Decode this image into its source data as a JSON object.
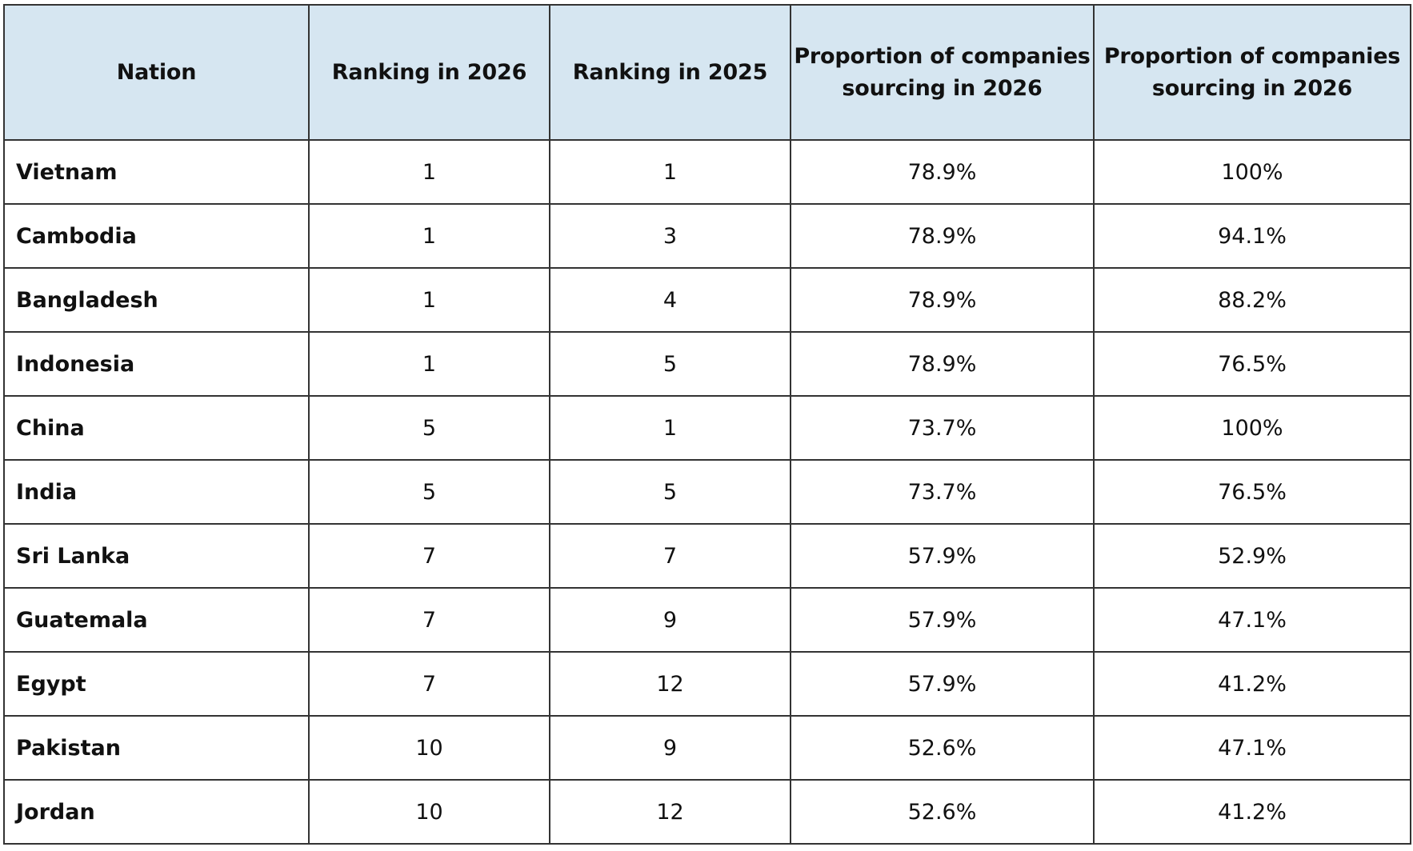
{
  "table": {
    "headers": [
      "Nation",
      "Ranking in 2026",
      "Ranking in 2025",
      "Proportion of companies sourcing in 2026",
      "Proportion of companies sourcing in 2026"
    ],
    "rows": [
      {
        "nation": "Vietnam",
        "rank_2026": "1",
        "rank_2025": "1",
        "prop_a": "78.9%",
        "prop_b": "100%"
      },
      {
        "nation": "Cambodia",
        "rank_2026": "1",
        "rank_2025": "3",
        "prop_a": "78.9%",
        "prop_b": "94.1%"
      },
      {
        "nation": "Bangladesh",
        "rank_2026": "1",
        "rank_2025": "4",
        "prop_a": "78.9%",
        "prop_b": "88.2%"
      },
      {
        "nation": "Indonesia",
        "rank_2026": "1",
        "rank_2025": "5",
        "prop_a": "78.9%",
        "prop_b": "76.5%"
      },
      {
        "nation": "China",
        "rank_2026": "5",
        "rank_2025": "1",
        "prop_a": "73.7%",
        "prop_b": "100%"
      },
      {
        "nation": "India",
        "rank_2026": "5",
        "rank_2025": "5",
        "prop_a": "73.7%",
        "prop_b": "76.5%"
      },
      {
        "nation": "Sri Lanka",
        "rank_2026": "7",
        "rank_2025": "7",
        "prop_a": "57.9%",
        "prop_b": "52.9%"
      },
      {
        "nation": "Guatemala",
        "rank_2026": "7",
        "rank_2025": "9",
        "prop_a": "57.9%",
        "prop_b": "47.1%"
      },
      {
        "nation": "Egypt",
        "rank_2026": "7",
        "rank_2025": "12",
        "prop_a": "57.9%",
        "prop_b": "41.2%"
      },
      {
        "nation": "Pakistan",
        "rank_2026": "10",
        "rank_2025": "9",
        "prop_a": "52.6%",
        "prop_b": "47.1%"
      },
      {
        "nation": "Jordan",
        "rank_2026": "10",
        "rank_2025": "12",
        "prop_a": "52.6%",
        "prop_b": "41.2%"
      }
    ]
  },
  "colors": {
    "header_background": "#d6e6f1",
    "border": "#333333",
    "text": "#111111"
  }
}
